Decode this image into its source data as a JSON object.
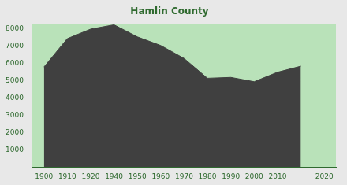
{
  "chart_data": {
    "type": "area",
    "title": "Hamlin County",
    "categories": [
      "1900",
      "1910",
      "1920",
      "1940",
      "1950",
      "1960",
      "1970",
      "1980",
      "1990",
      "2000",
      "2010",
      null,
      "2020"
    ],
    "values": [
      5800,
      7450,
      8000,
      8250,
      7550,
      7050,
      6300,
      5150,
      5200,
      4950,
      5500,
      5850,
      null
    ],
    "color": "#404040",
    "ylim": [
      0,
      8300
    ],
    "yticks": [
      1000,
      2000,
      3000,
      4000,
      5000,
      6000,
      7000,
      8000
    ],
    "grid": false
  }
}
